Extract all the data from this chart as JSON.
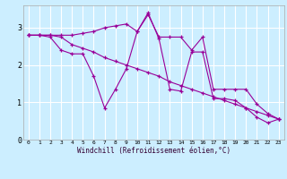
{
  "xlabel": "Windchill (Refroidissement éolien,°C)",
  "x": [
    0,
    1,
    2,
    3,
    4,
    5,
    6,
    7,
    8,
    9,
    10,
    11,
    12,
    13,
    14,
    15,
    16,
    17,
    18,
    19,
    20,
    21,
    22,
    23
  ],
  "y_top": [
    2.8,
    2.8,
    2.8,
    2.8,
    2.8,
    2.85,
    2.9,
    3.0,
    3.05,
    3.1,
    2.9,
    3.35,
    2.75,
    2.75,
    2.75,
    2.4,
    2.75,
    1.35,
    1.35,
    1.35,
    1.35,
    0.95,
    0.7,
    0.55
  ],
  "y_mid": [
    2.8,
    2.8,
    2.8,
    2.75,
    2.55,
    2.45,
    2.35,
    2.2,
    2.1,
    2.0,
    1.9,
    1.8,
    1.7,
    1.55,
    1.45,
    1.35,
    1.25,
    1.15,
    1.05,
    0.95,
    0.85,
    0.75,
    0.65,
    0.55
  ],
  "y_bot": [
    2.8,
    2.8,
    2.75,
    2.4,
    2.3,
    2.3,
    1.7,
    0.85,
    1.35,
    1.9,
    2.9,
    3.4,
    2.7,
    1.35,
    1.3,
    2.35,
    2.35,
    1.1,
    1.1,
    1.05,
    0.85,
    0.6,
    0.45,
    0.55
  ],
  "line_color": "#990099",
  "bg_color": "#cceeff",
  "grid_color": "#ffffff",
  "ylim": [
    0,
    3.6
  ],
  "xlim_min": -0.5,
  "xlim_max": 23.5
}
